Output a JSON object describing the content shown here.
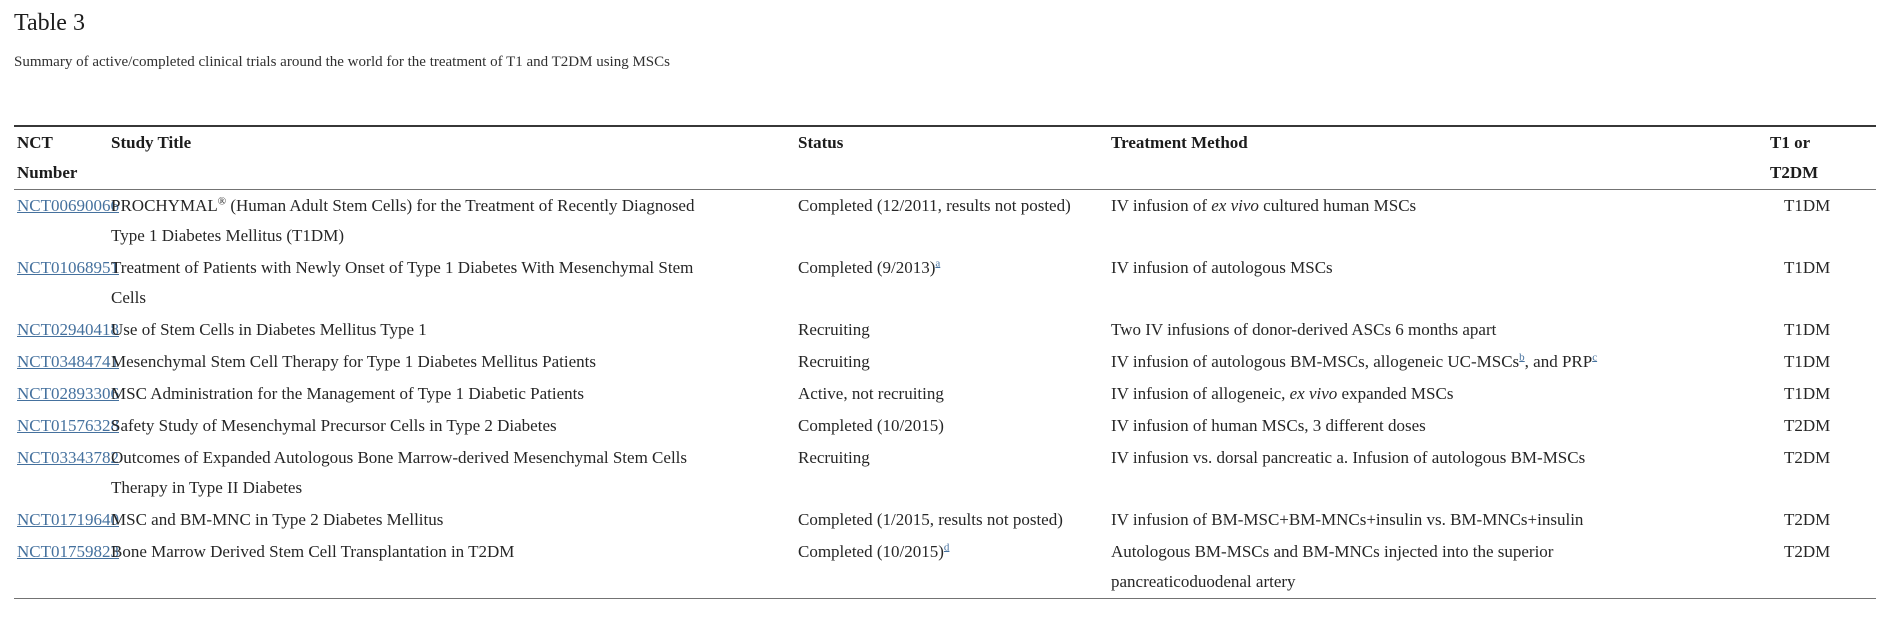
{
  "page": {
    "title": "Table 3",
    "subtitle": "Summary of active/completed clinical trials around the world for the treatment of T1 and T2DM using MSCs"
  },
  "colors": {
    "link": "#45719e",
    "text": "#262626",
    "border_top": "#373737",
    "border_rule": "#737373"
  },
  "table": {
    "headers": {
      "nct": "NCT Number",
      "title": "Study Title",
      "status": "Status",
      "treatment": "Treatment Method",
      "type_line1": "T1 or",
      "type_line2": "T2DM"
    },
    "rows": [
      {
        "nct": "NCT00690066",
        "title": [
          {
            "t": "PROCHYMAL"
          },
          {
            "t": "®",
            "s": "sup"
          },
          {
            "t": " (Human Adult Stem Cells) for the Treatment of Recently Diagnosed Type 1 Diabetes Mellitus (T1DM)"
          }
        ],
        "status": [
          {
            "t": "Completed (12/2011, results not posted)"
          }
        ],
        "treatment": [
          {
            "t": "IV infusion of "
          },
          {
            "t": "ex vivo",
            "s": "i"
          },
          {
            "t": " cultured human MSCs"
          }
        ],
        "type": "T1DM"
      },
      {
        "nct": "NCT01068951",
        "title": [
          {
            "t": "Treatment of Patients with Newly Onset of Type 1 Diabetes With Mesenchymal Stem Cells"
          }
        ],
        "status": [
          {
            "t": "Completed (9/2013)"
          },
          {
            "t": "a",
            "s": "a"
          }
        ],
        "treatment": [
          {
            "t": "IV infusion of autologous MSCs"
          }
        ],
        "type": "T1DM"
      },
      {
        "nct": "NCT02940418",
        "title": [
          {
            "t": "Use of Stem Cells in Diabetes Mellitus Type 1"
          }
        ],
        "status": [
          {
            "t": "Recruiting"
          }
        ],
        "treatment": [
          {
            "t": "Two IV infusions of donor-derived ASCs 6 months apart"
          }
        ],
        "type": "T1DM"
      },
      {
        "nct": "NCT03484741",
        "title": [
          {
            "t": "Mesenchymal Stem Cell Therapy for Type 1 Diabetes Mellitus Patients"
          }
        ],
        "status": [
          {
            "t": "Recruiting"
          }
        ],
        "treatment": [
          {
            "t": "IV infusion of autologous BM-MSCs, allogeneic UC-MSCs"
          },
          {
            "t": "b",
            "s": "a"
          },
          {
            "t": ", and PRP"
          },
          {
            "t": "c",
            "s": "a"
          }
        ],
        "type": "T1DM"
      },
      {
        "nct": "NCT02893306",
        "title": [
          {
            "t": "MSC Administration for the Management of Type 1 Diabetic Patients"
          }
        ],
        "status": [
          {
            "t": "Active, not recruiting"
          }
        ],
        "treatment": [
          {
            "t": "IV infusion of allogeneic, "
          },
          {
            "t": "ex vivo",
            "s": "i"
          },
          {
            "t": " expanded MSCs"
          }
        ],
        "type": "T1DM"
      },
      {
        "nct": "NCT01576328",
        "title": [
          {
            "t": "Safety Study of Mesenchymal Precursor Cells in Type 2 Diabetes"
          }
        ],
        "status": [
          {
            "t": "Completed (10/2015)"
          }
        ],
        "treatment": [
          {
            "t": "IV infusion of human MSCs, 3 different doses"
          }
        ],
        "type": "T2DM"
      },
      {
        "nct": "NCT03343782",
        "title": [
          {
            "t": "Outcomes of Expanded Autologous Bone Marrow-derived Mesenchymal Stem Cells Therapy in Type II Diabetes"
          }
        ],
        "status": [
          {
            "t": "Recruiting"
          }
        ],
        "treatment": [
          {
            "t": "IV infusion vs. dorsal pancreatic a. Infusion of autologous BM-MSCs"
          }
        ],
        "type": "T2DM"
      },
      {
        "nct": "NCT01719640",
        "title": [
          {
            "t": "MSC and BM-MNC in Type 2 Diabetes Mellitus"
          }
        ],
        "status": [
          {
            "t": "Completed (1/2015, results not posted)"
          }
        ],
        "treatment": [
          {
            "t": "IV infusion of BM-MSC+BM-MNCs+insulin vs. BM-MNCs+insulin"
          }
        ],
        "type": "T2DM"
      },
      {
        "nct": "NCT01759823",
        "title": [
          {
            "t": "Bone Marrow Derived Stem Cell Transplantation in T2DM"
          }
        ],
        "status": [
          {
            "t": "Completed (10/2015)"
          },
          {
            "t": "d",
            "s": "a"
          }
        ],
        "treatment": [
          {
            "t": "Autologous BM-MSCs and BM-MNCs injected into the superior pancreaticoduodenal artery"
          }
        ],
        "type": "T2DM"
      }
    ]
  }
}
